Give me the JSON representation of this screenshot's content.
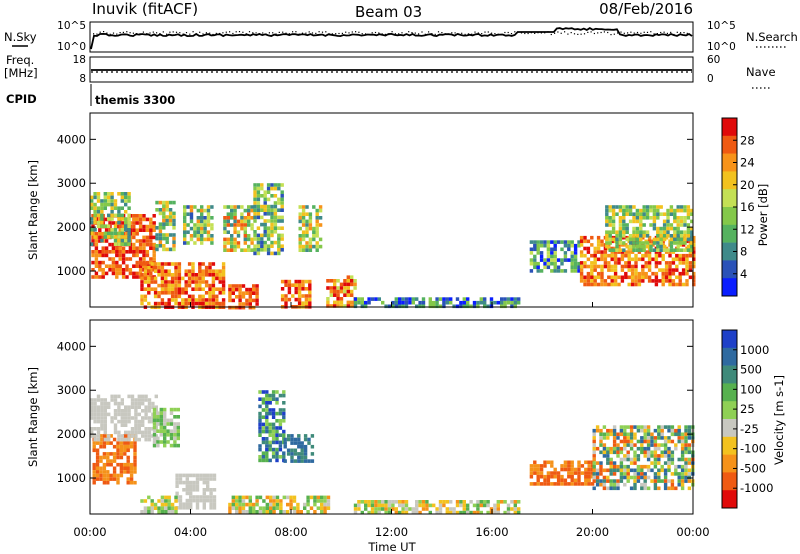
{
  "header": {
    "station": "Inuvik (fitACF)",
    "beam": "Beam 03",
    "date": "08/Feb/2016"
  },
  "top_panels": {
    "nsky_label": "N.Sky",
    "nsky_ticks": [
      "10^5",
      "10^0"
    ],
    "nsearch_label": "N.Search",
    "nsearch_ticks": [
      "10^5",
      "10^0"
    ],
    "freq_label_1": "Freq.",
    "freq_label_2": "[MHz]",
    "freq_ticks": [
      "18",
      "8"
    ],
    "nave_label": "Nave",
    "nave_ticks": [
      "60",
      "0"
    ],
    "cpid_label": "CPID",
    "cpid_value": "themis 3300"
  },
  "x_axis": {
    "label": "Time UT",
    "ticks": [
      "00:00",
      "04:00",
      "08:00",
      "12:00",
      "16:00",
      "20:00",
      "00:00"
    ]
  },
  "chart_data": [
    {
      "type": "heatmap",
      "title": "Power",
      "ylabel": "Slant Range [km]",
      "xlabel": "",
      "xlim": [
        0,
        24
      ],
      "ylim": [
        180,
        4600
      ],
      "yticks": [
        "1000",
        "2000",
        "3000",
        "4000"
      ],
      "colorbar": {
        "label": "Power [dB]",
        "ticks": [
          "4",
          "8",
          "12",
          "16",
          "20",
          "24",
          "28"
        ],
        "colors": [
          "#0a1eff",
          "#2a52b8",
          "#3f8a8a",
          "#55b25f",
          "#84c84a",
          "#c4e055",
          "#f2c21f",
          "#f7931a",
          "#ef5a12",
          "#e00a0a"
        ]
      },
      "regions": [
        {
          "t": [
            0.05,
            2.6
          ],
          "r": [
            900,
            2300
          ],
          "c": [
            7,
            9
          ]
        },
        {
          "t": [
            0.0,
            1.6
          ],
          "r": [
            1600,
            2800
          ],
          "c": [
            2,
            6
          ]
        },
        {
          "t": [
            2.6,
            3.4
          ],
          "r": [
            1500,
            2600
          ],
          "c": [
            2,
            7
          ]
        },
        {
          "t": [
            2.0,
            5.3
          ],
          "r": [
            200,
            1200
          ],
          "c": [
            6,
            9
          ]
        },
        {
          "t": [
            3.7,
            4.9
          ],
          "r": [
            1600,
            2500
          ],
          "c": [
            1,
            7
          ]
        },
        {
          "t": [
            5.3,
            6.4
          ],
          "r": [
            1500,
            2500
          ],
          "c": [
            2,
            8
          ]
        },
        {
          "t": [
            5.5,
            6.6
          ],
          "r": [
            200,
            700
          ],
          "c": [
            7,
            9
          ]
        },
        {
          "t": [
            6.5,
            7.6
          ],
          "r": [
            1400,
            3000
          ],
          "c": [
            1,
            6
          ]
        },
        {
          "t": [
            7.6,
            8.8
          ],
          "r": [
            200,
            800
          ],
          "c": [
            6,
            9
          ]
        },
        {
          "t": [
            8.3,
            9.2
          ],
          "r": [
            1500,
            2500
          ],
          "c": [
            2,
            7
          ]
        },
        {
          "t": [
            9.4,
            10.5
          ],
          "r": [
            200,
            900
          ],
          "c": [
            5,
            9
          ]
        },
        {
          "t": [
            10.5,
            17.0
          ],
          "r": [
            200,
            400
          ],
          "c": [
            0,
            4
          ]
        },
        {
          "t": [
            17.5,
            19.5
          ],
          "r": [
            1000,
            1700
          ],
          "c": [
            0,
            5
          ]
        },
        {
          "t": [
            19.5,
            24.0
          ],
          "r": [
            700,
            1800
          ],
          "c": [
            6,
            9
          ]
        },
        {
          "t": [
            20.5,
            24.0
          ],
          "r": [
            1500,
            2500
          ],
          "c": [
            2,
            6
          ]
        }
      ]
    },
    {
      "type": "heatmap",
      "title": "Velocity",
      "ylabel": "Slant Range [km]",
      "xlabel": "Time UT",
      "xlim": [
        0,
        24
      ],
      "ylim": [
        180,
        4600
      ],
      "yticks": [
        "1000",
        "2000",
        "3000",
        "4000"
      ],
      "colorbar": {
        "label": "Velocity [m s-1]",
        "ticks": [
          "1000",
          "500",
          "100",
          "25",
          "-25",
          "-100",
          "-500",
          "-1000"
        ],
        "colors": [
          "#1e40c8",
          "#2f6aa0",
          "#3f8a7a",
          "#57b14f",
          "#8fd055",
          "#c8c8c0",
          "#f3c21f",
          "#f5921a",
          "#ef5a12",
          "#e00a0a"
        ]
      },
      "regions": [
        {
          "t": [
            0.1,
            1.8
          ],
          "r": [
            900,
            2000
          ],
          "c": [
            7,
            8
          ]
        },
        {
          "t": [
            0.0,
            2.6
          ],
          "r": [
            1900,
            2900
          ],
          "c": [
            5,
            5
          ]
        },
        {
          "t": [
            2.5,
            3.5
          ],
          "r": [
            1700,
            2600
          ],
          "c": [
            3,
            5
          ]
        },
        {
          "t": [
            3.4,
            5.0
          ],
          "r": [
            300,
            1100
          ],
          "c": [
            5,
            5
          ]
        },
        {
          "t": [
            2.0,
            3.4
          ],
          "r": [
            200,
            600
          ],
          "c": [
            3,
            6
          ]
        },
        {
          "t": [
            6.7,
            7.7
          ],
          "r": [
            1400,
            3000
          ],
          "c": [
            0,
            4
          ]
        },
        {
          "t": [
            7.7,
            8.8
          ],
          "r": [
            1400,
            2000
          ],
          "c": [
            1,
            2
          ]
        },
        {
          "t": [
            5.5,
            9.5
          ],
          "r": [
            200,
            600
          ],
          "c": [
            3,
            7
          ]
        },
        {
          "t": [
            10.5,
            17.0
          ],
          "r": [
            200,
            500
          ],
          "c": [
            3,
            7
          ]
        },
        {
          "t": [
            17.5,
            20.0
          ],
          "r": [
            900,
            1400
          ],
          "c": [
            7,
            8
          ]
        },
        {
          "t": [
            20.0,
            24.0
          ],
          "r": [
            800,
            2200
          ],
          "c": [
            1,
            8
          ]
        }
      ]
    }
  ],
  "colors": {
    "frame": "#000000",
    "background": "#ffffff"
  }
}
